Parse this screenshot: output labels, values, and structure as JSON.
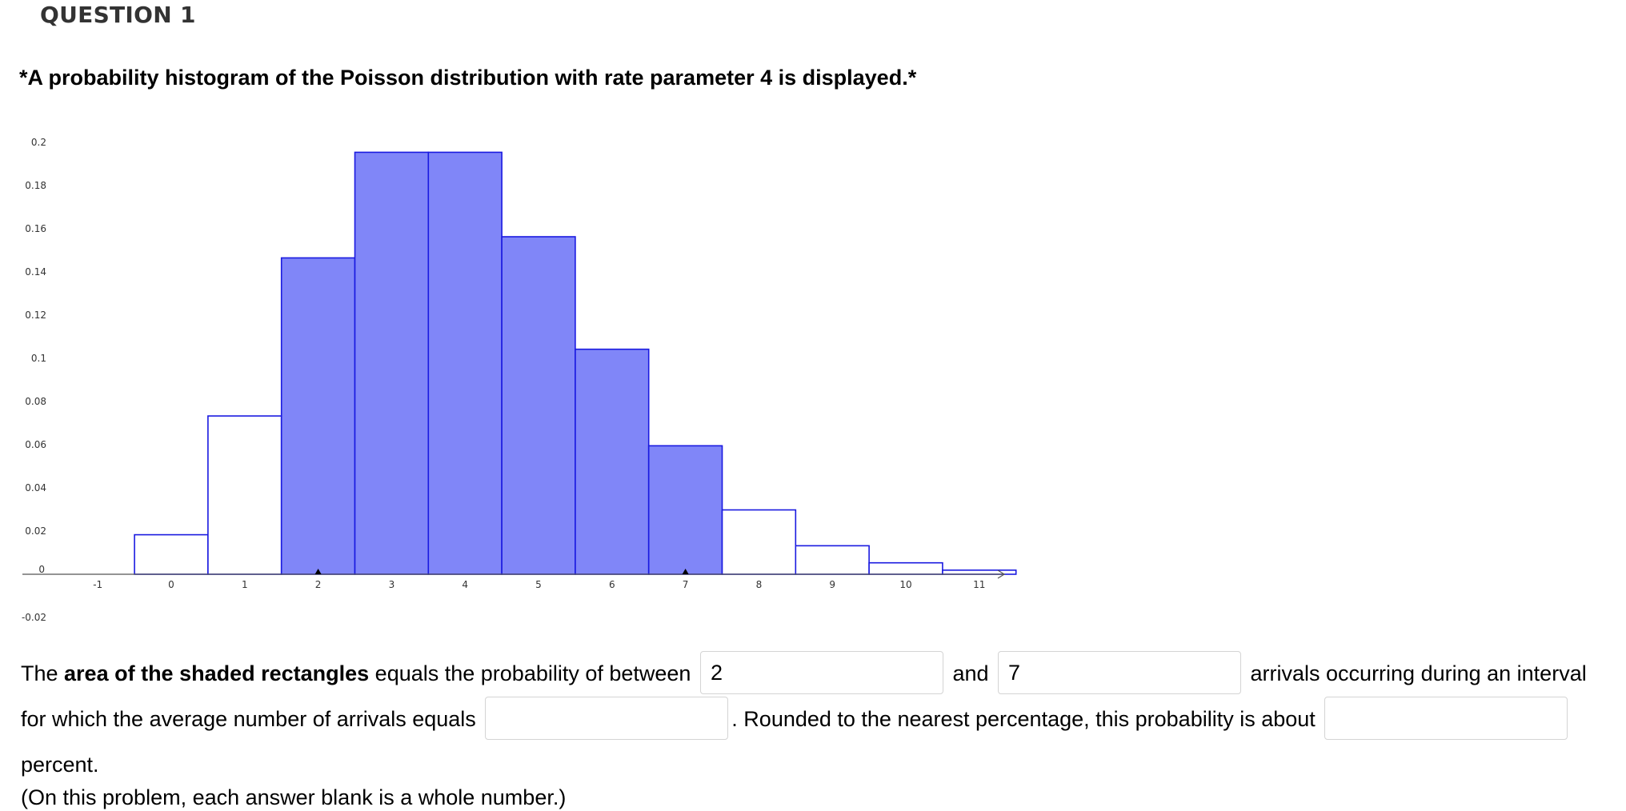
{
  "question": {
    "heading": "QUESTION 1",
    "prompt": "*A probability histogram of the Poisson distribution with rate parameter 4 is displayed.*"
  },
  "chart_data": {
    "type": "bar",
    "x": [
      0,
      1,
      2,
      3,
      4,
      5,
      6,
      7,
      8,
      9,
      10,
      11
    ],
    "values": [
      0.0183,
      0.0733,
      0.1465,
      0.1954,
      0.1954,
      0.1563,
      0.1042,
      0.0595,
      0.0298,
      0.0132,
      0.0053,
      0.0019
    ],
    "shaded": [
      false,
      false,
      true,
      true,
      true,
      true,
      true,
      true,
      false,
      false,
      false,
      false
    ],
    "xlim": [
      -1.6,
      11.35
    ],
    "ylim": [
      -0.02,
      0.2
    ],
    "x_ticks": [
      "-1",
      "0",
      "1",
      "2",
      "3",
      "4",
      "5",
      "6",
      "7",
      "8",
      "9",
      "10",
      "11"
    ],
    "y_ticks": [
      "0.2",
      "0.18",
      "0.16",
      "0.14",
      "0.12",
      "0.1",
      "0.08",
      "0.06",
      "0.04",
      "0.02",
      "0",
      "-0.02"
    ],
    "markers_at": [
      2,
      7
    ],
    "colors": {
      "shaded_fill": "#8086f8",
      "bar_stroke": "#1a1ae0",
      "axis": "#555555"
    }
  },
  "answer": {
    "t1": "The ",
    "t2_bold": "area of the shaded rectangles",
    "t3": " equals the probability of between ",
    "blank1_value": "2",
    "t4": " and ",
    "blank2_value": "7",
    "t5": " arrivals occurring during an interval for which the average number of arrivals equals ",
    "blank3_value": "",
    "t6": ". Rounded to the nearest percentage, this probability is about ",
    "blank4_value": "",
    "t7": " percent.",
    "note": "(On this problem, each answer blank is a whole number.)"
  }
}
